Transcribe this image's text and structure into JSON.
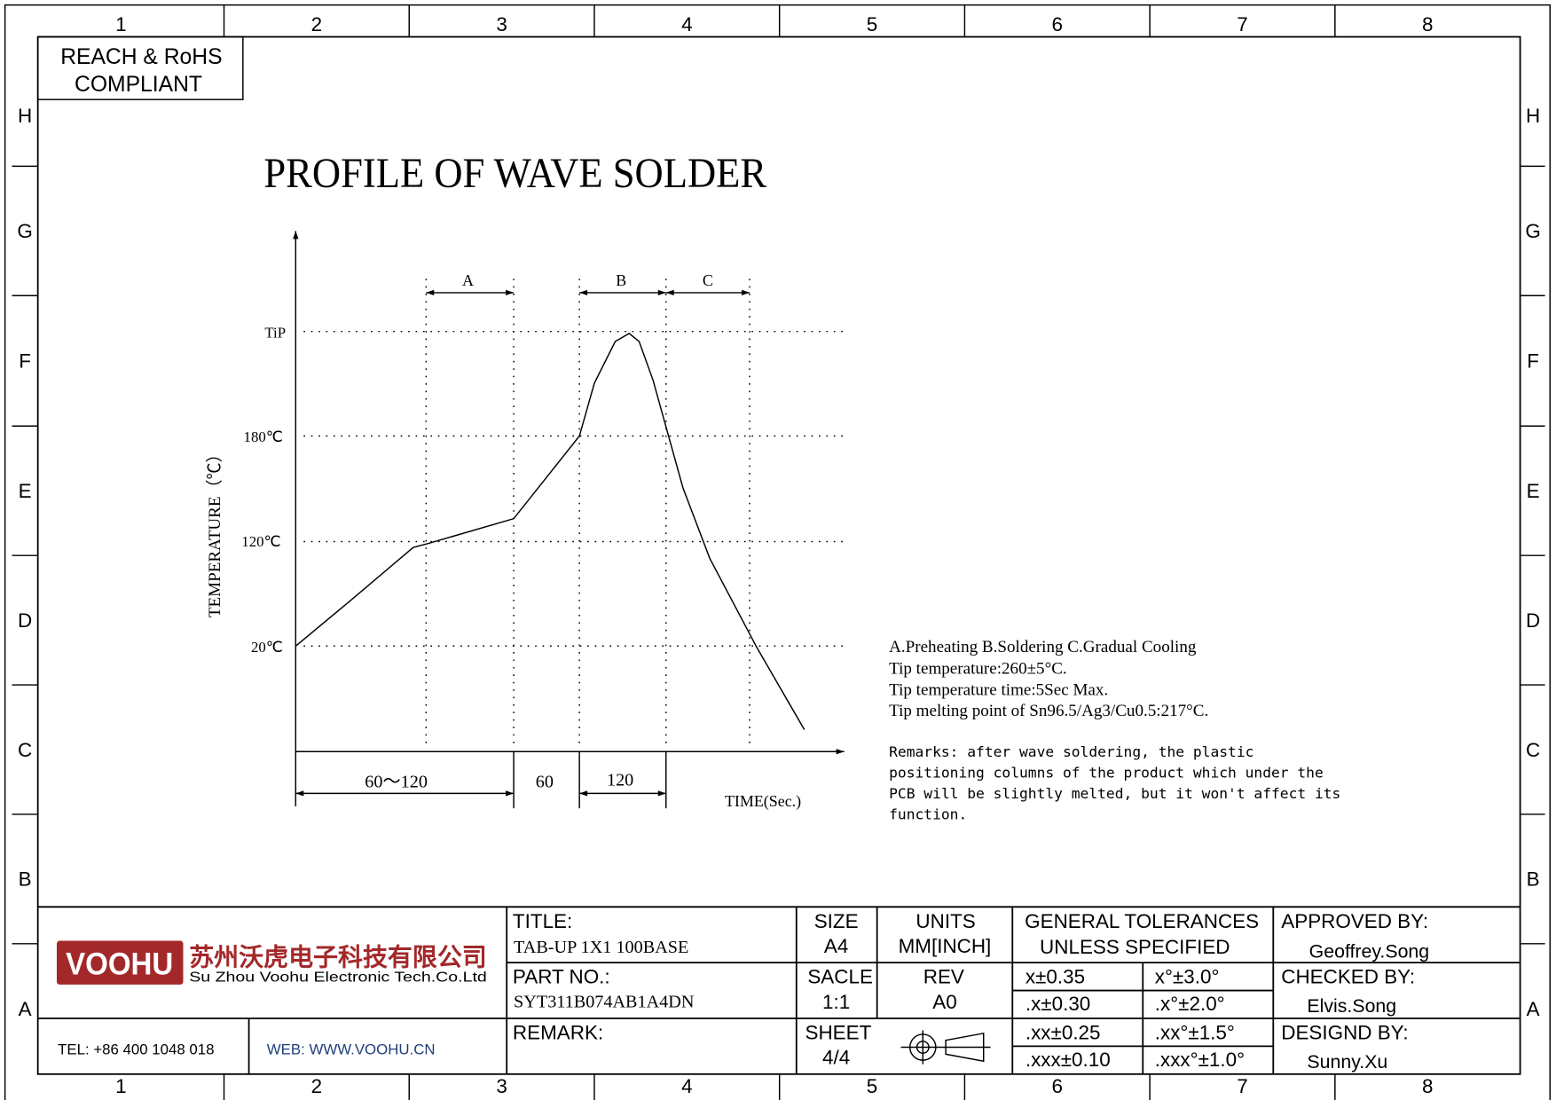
{
  "border": {
    "columns": [
      "1",
      "2",
      "3",
      "4",
      "5",
      "6",
      "7",
      "8"
    ],
    "rows": [
      "H",
      "G",
      "F",
      "E",
      "D",
      "C",
      "B",
      "A"
    ]
  },
  "compliance": {
    "line1": "REACH & RoHS",
    "line2": "COMPLIANT"
  },
  "drawing_title": "PROFILE OF WAVE SOLDER",
  "chart": {
    "ylabel": "TEMPERATURE（℃）",
    "xlabel": "TIME(Sec.)",
    "y_ticks": [
      "TiP",
      "180℃",
      "120℃",
      "20℃"
    ],
    "zones": [
      "A",
      "B",
      "C"
    ],
    "durations": [
      "60～120",
      "60",
      "120"
    ]
  },
  "notes": {
    "legend": "A.Preheating  B.Soldering  C.Gradual Cooling",
    "tip_temp": "Tip temperature:260±5°C.",
    "tip_time": "Tip temperature time:5Sec Max.",
    "melting": "Tip melting point of Sn96.5/Ag3/Cu0.5:217°C.",
    "remarks": [
      "Remarks: after wave soldering, the plastic",
      "positioning columns of the product  which under the",
      "PCB will be slightly melted, but it won't affect its",
      "function."
    ]
  },
  "title_block": {
    "logo_text": "VOOHU",
    "company_cn": "苏州沃虎电子科技有限公司",
    "company_en": "Su Zhou Voohu Electronic Tech.Co.Ltd",
    "brand_color": "#a3282a",
    "tel": "TEL: +86 400 1048 018",
    "web": "WEB: WWW.VOOHU.CN",
    "title_label": "TITLE:",
    "title_value": "TAB-UP 1X1 100BASE",
    "part_label": "PART NO.:",
    "part_value": "SYT311B074AB1A4DN",
    "remark_label": "REMARK:",
    "size_label": "SIZE",
    "size_value": "A4",
    "scale_label": "SACLE",
    "scale_value": "1:1",
    "sheet_label": "SHEET",
    "sheet_value": "4/4",
    "units_label": "UNITS",
    "units_value": "MM[INCH]",
    "rev_label": "REV",
    "rev_value": "A0",
    "tol_line1": "GENERAL TOLERANCES",
    "tol_line2": "UNLESS SPECIFIED",
    "tolerances": [
      [
        "x±0.35",
        "x°±3.0°"
      ],
      [
        ".x±0.30",
        ".x°±2.0°"
      ],
      [
        ".xx±0.25",
        ".xx°±1.5°"
      ],
      [
        ".xxx±0.10",
        ".xxx°±1.0°"
      ]
    ],
    "approved_label": "APPROVED BY:",
    "approved_value": "Geoffrey.Song",
    "checked_label": "CHECKED BY:",
    "checked_value": "Elvis.Song",
    "designed_label": "DESIGND BY:",
    "designed_value": "Sunny.Xu"
  }
}
